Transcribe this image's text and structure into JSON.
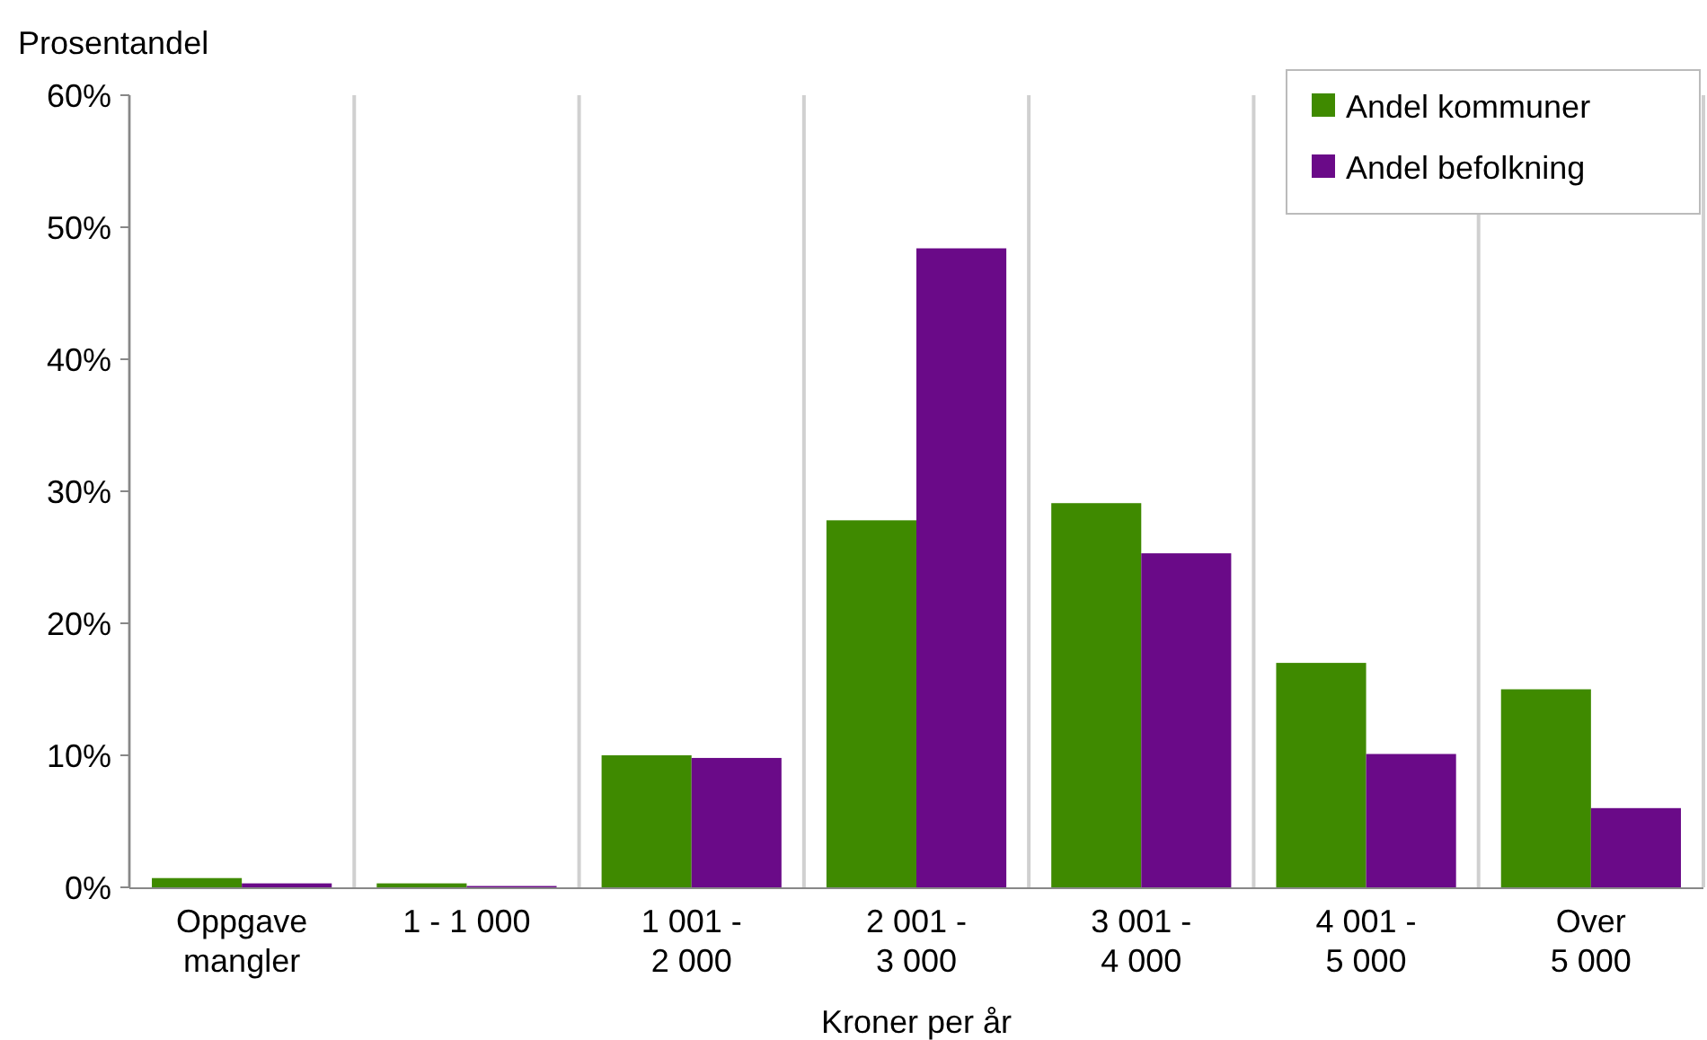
{
  "chart_data": {
    "type": "bar",
    "ylabel": "Prosentandel",
    "xlabel": "Kroner per år",
    "categories": [
      "Oppgave\nmangler",
      "1 - 1 000",
      "1 001 -\n2 000",
      "2 001 -\n3 000",
      "3 001 -\n4 000",
      "4 001 -\n5 000",
      "Over\n5 000"
    ],
    "series": [
      {
        "name": "Andel kommuner",
        "color": "#3f8a00",
        "values": [
          0.7,
          0.3,
          10,
          27.8,
          29.1,
          17,
          15
        ]
      },
      {
        "name": "Andel befolkning",
        "color": "#6a0a88",
        "values": [
          0.3,
          0.1,
          9.8,
          48.4,
          25.3,
          10.1,
          6
        ]
      }
    ],
    "ylim": [
      0,
      60
    ],
    "yticks": [
      {
        "value": 0,
        "label": "0%"
      },
      {
        "value": 10,
        "label": "10%"
      },
      {
        "value": 20,
        "label": "20%"
      },
      {
        "value": 30,
        "label": "30%"
      },
      {
        "value": 40,
        "label": "40%"
      },
      {
        "value": 50,
        "label": "50%"
      },
      {
        "value": 60,
        "label": "60%"
      }
    ],
    "grid": "x",
    "legend": "top right"
  }
}
